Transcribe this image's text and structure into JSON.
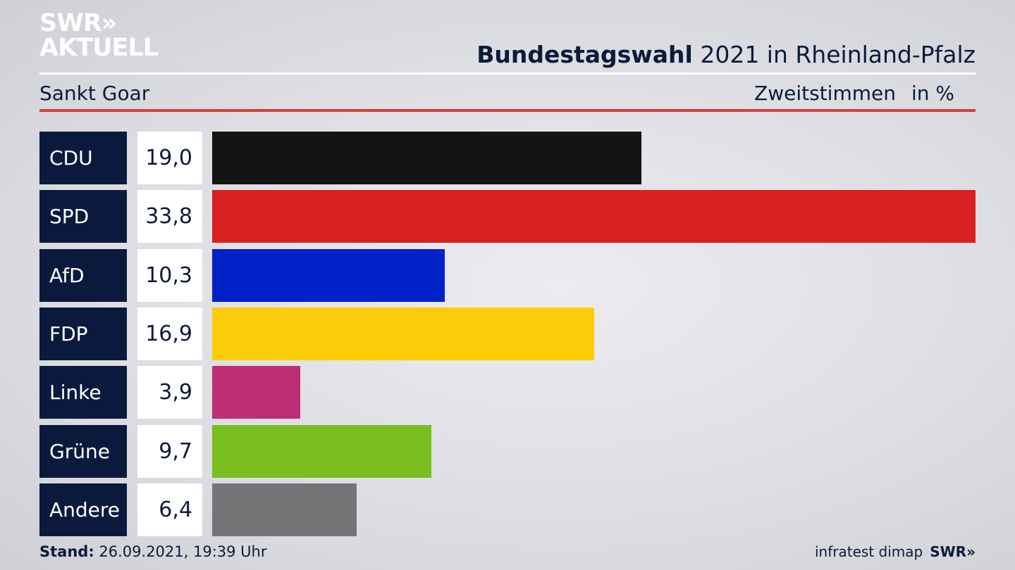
{
  "brand": {
    "line1": "SWR»",
    "line2": "AKTUELL"
  },
  "header": {
    "title_bold": "Bundestagswahl",
    "title_rest": " 2021 in Rheinland-Pfalz",
    "subtitle": "Sankt Goar",
    "metric": "Zweitstimmen",
    "unit": "in %"
  },
  "chart_data": {
    "type": "bar",
    "orientation": "horizontal",
    "categories": [
      "CDU",
      "SPD",
      "AfD",
      "FDP",
      "Linke",
      "Grüne",
      "Andere"
    ],
    "values": [
      19.0,
      33.8,
      10.3,
      16.9,
      3.9,
      9.7,
      6.4
    ],
    "value_labels": [
      "19,0",
      "33,8",
      "10,3",
      "16,9",
      "3,9",
      "9,7",
      "6,4"
    ],
    "colors": [
      "#141414",
      "#d82020",
      "#0021c8",
      "#fdcc08",
      "#be2e75",
      "#78be1e",
      "#757578"
    ],
    "xlim": [
      0,
      33.8
    ],
    "title": "Bundestagswahl 2021 in Rheinland-Pfalz",
    "subtitle": "Sankt Goar",
    "xlabel": "",
    "ylabel": "",
    "grid": false
  },
  "footer": {
    "stand_label": "Stand:",
    "stand_value": " 26.09.2021, 19:39 Uhr",
    "source": "infratest dimap",
    "brand": "SWR»"
  }
}
